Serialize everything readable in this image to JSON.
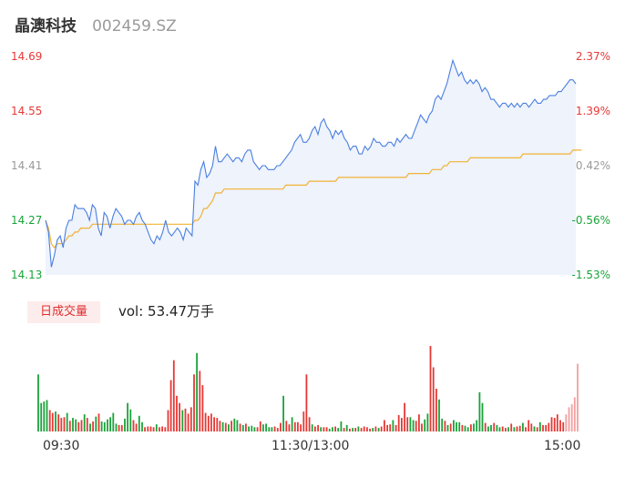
{
  "header": {
    "name": "晶澳科技",
    "code": "002459.SZ"
  },
  "colors": {
    "up": "#e53935",
    "down": "#1aa33a",
    "flat": "#999999",
    "price_line": "#4a7fe0",
    "avg_line": "#f2b234"
  },
  "chart_data": {
    "type": "line",
    "price_axis": {
      "ticks": [
        "14.69",
        "14.55",
        "14.41",
        "14.27",
        "14.13"
      ]
    },
    "pct_axis": {
      "ticks": [
        "2.37%",
        "1.39%",
        "0.42%",
        "-0.56%",
        "-1.53%"
      ]
    },
    "ylim": [
      14.13,
      14.69
    ],
    "x_ticks": [
      "09:30",
      "11:30/13:00",
      "15:00"
    ],
    "price": [
      14.27,
      14.24,
      14.15,
      14.18,
      14.22,
      14.23,
      14.2,
      14.25,
      14.27,
      14.27,
      14.31,
      14.3,
      14.3,
      14.3,
      14.29,
      14.27,
      14.31,
      14.3,
      14.25,
      14.23,
      14.29,
      14.28,
      14.25,
      14.28,
      14.3,
      14.29,
      14.28,
      14.26,
      14.27,
      14.27,
      14.26,
      14.28,
      14.29,
      14.27,
      14.26,
      14.24,
      14.22,
      14.21,
      14.23,
      14.22,
      14.24,
      14.27,
      14.24,
      14.23,
      14.24,
      14.25,
      14.24,
      14.22,
      14.25,
      14.24,
      14.23,
      14.37,
      14.36,
      14.4,
      14.42,
      14.38,
      14.39,
      14.41,
      14.46,
      14.42,
      14.42,
      14.43,
      14.44,
      14.43,
      14.42,
      14.43,
      14.43,
      14.42,
      14.44,
      14.45,
      14.45,
      14.42,
      14.41,
      14.4,
      14.41,
      14.41,
      14.4,
      14.4,
      14.4,
      14.41,
      14.41,
      14.42,
      14.43,
      14.44,
      14.45,
      14.47,
      14.48,
      14.49,
      14.47,
      14.47,
      14.48,
      14.5,
      14.51,
      14.49,
      14.52,
      14.53,
      14.51,
      14.5,
      14.48,
      14.5,
      14.49,
      14.5,
      14.48,
      14.47,
      14.45,
      14.46,
      14.46,
      14.44,
      14.44,
      14.46,
      14.45,
      14.46,
      14.48,
      14.47,
      14.47,
      14.46,
      14.46,
      14.47,
      14.47,
      14.46,
      14.48,
      14.47,
      14.48,
      14.49,
      14.48,
      14.48,
      14.5,
      14.52,
      14.54,
      14.53,
      14.52,
      14.54,
      14.55,
      14.58,
      14.59,
      14.58,
      14.6,
      14.62,
      14.65,
      14.68,
      14.66,
      14.64,
      14.65,
      14.63,
      14.62,
      14.63,
      14.62,
      14.63,
      14.62,
      14.6,
      14.61,
      14.6,
      14.58,
      14.58,
      14.57,
      14.56,
      14.57,
      14.57,
      14.56,
      14.57,
      14.56,
      14.57,
      14.56,
      14.57,
      14.57,
      14.56,
      14.57,
      14.58,
      14.57,
      14.57,
      14.58,
      14.58,
      14.59,
      14.59,
      14.59,
      14.6,
      14.6,
      14.61,
      14.62,
      14.63,
      14.63,
      14.62
    ],
    "avg": [
      14.27,
      14.25,
      14.21,
      14.2,
      14.21,
      14.21,
      14.21,
      14.22,
      14.23,
      14.23,
      14.24,
      14.24,
      14.25,
      14.25,
      14.25,
      14.25,
      14.26,
      14.26,
      14.26,
      14.26,
      14.26,
      14.26,
      14.26,
      14.26,
      14.26,
      14.26,
      14.26,
      14.26,
      14.26,
      14.26,
      14.26,
      14.26,
      14.26,
      14.26,
      14.26,
      14.26,
      14.26,
      14.26,
      14.26,
      14.26,
      14.26,
      14.26,
      14.26,
      14.26,
      14.26,
      14.26,
      14.26,
      14.26,
      14.26,
      14.26,
      14.26,
      14.27,
      14.27,
      14.28,
      14.3,
      14.3,
      14.31,
      14.32,
      14.34,
      14.34,
      14.34,
      14.35,
      14.35,
      14.35,
      14.35,
      14.35,
      14.35,
      14.35,
      14.35,
      14.35,
      14.35,
      14.35,
      14.35,
      14.35,
      14.35,
      14.35,
      14.35,
      14.35,
      14.35,
      14.35,
      14.35,
      14.35,
      14.36,
      14.36,
      14.36,
      14.36,
      14.36,
      14.36,
      14.36,
      14.36,
      14.37,
      14.37,
      14.37,
      14.37,
      14.37,
      14.37,
      14.37,
      14.37,
      14.37,
      14.37,
      14.38,
      14.38,
      14.38,
      14.38,
      14.38,
      14.38,
      14.38,
      14.38,
      14.38,
      14.38,
      14.38,
      14.38,
      14.38,
      14.38,
      14.38,
      14.38,
      14.38,
      14.38,
      14.38,
      14.38,
      14.38,
      14.38,
      14.38,
      14.38,
      14.39,
      14.39,
      14.39,
      14.39,
      14.39,
      14.39,
      14.39,
      14.39,
      14.4,
      14.4,
      14.4,
      14.4,
      14.41,
      14.41,
      14.42,
      14.42,
      14.42,
      14.42,
      14.42,
      14.42,
      14.42,
      14.43,
      14.43,
      14.43,
      14.43,
      14.43,
      14.43,
      14.43,
      14.43,
      14.43,
      14.43,
      14.43,
      14.43,
      14.43,
      14.43,
      14.43,
      14.43,
      14.43,
      14.43,
      14.44,
      14.44,
      14.44,
      14.44,
      14.44,
      14.44,
      14.44,
      14.44,
      14.44,
      14.44,
      14.44,
      14.44,
      14.44,
      14.44,
      14.44,
      14.44,
      14.44,
      14.45,
      14.45,
      14.45,
      14.45
    ],
    "volume": {
      "label": "日成交量",
      "total": "vol: 53.47万手",
      "values": [
        0.8,
        0.4,
        0.42,
        0.44,
        0.3,
        0.26,
        0.28,
        0.24,
        0.19,
        0.2,
        0.26,
        0.15,
        0.19,
        0.17,
        0.13,
        0.16,
        0.24,
        0.19,
        0.11,
        0.14,
        0.21,
        0.25,
        0.14,
        0.13,
        0.17,
        0.2,
        0.26,
        0.11,
        0.09,
        0.09,
        0.18,
        0.4,
        0.31,
        0.16,
        0.11,
        0.22,
        0.13,
        0.06,
        0.07,
        0.07,
        0.06,
        0.1,
        0.06,
        0.07,
        0.06,
        0.3,
        0.72,
        1.0,
        0.5,
        0.4,
        0.3,
        0.32,
        0.25,
        0.34,
        0.8,
        1.1,
        0.85,
        0.65,
        0.26,
        0.22,
        0.25,
        0.2,
        0.19,
        0.15,
        0.13,
        0.12,
        0.1,
        0.15,
        0.18,
        0.16,
        0.11,
        0.09,
        0.11,
        0.07,
        0.08,
        0.06,
        0.06,
        0.14,
        0.1,
        0.11,
        0.06,
        0.06,
        0.07,
        0.05,
        0.12,
        0.5,
        0.15,
        0.1,
        0.2,
        0.13,
        0.13,
        0.1,
        0.28,
        0.8,
        0.2,
        0.1,
        0.07,
        0.09,
        0.06,
        0.06,
        0.06,
        0.04,
        0.06,
        0.07,
        0.05,
        0.14,
        0.05,
        0.09,
        0.04,
        0.05,
        0.05,
        0.07,
        0.05,
        0.07,
        0.06,
        0.04,
        0.05,
        0.07,
        0.05,
        0.07,
        0.16,
        0.09,
        0.1,
        0.16,
        0.09,
        0.23,
        0.19,
        0.4,
        0.2,
        0.2,
        0.16,
        0.15,
        0.24,
        0.11,
        0.17,
        0.25,
        1.2,
        0.9,
        0.6,
        0.45,
        0.18,
        0.15,
        0.09,
        0.11,
        0.16,
        0.13,
        0.13,
        0.09,
        0.08,
        0.06,
        0.1,
        0.11,
        0.16,
        0.55,
        0.4,
        0.12,
        0.07,
        0.09,
        0.12,
        0.09,
        0.06,
        0.07,
        0.05,
        0.06,
        0.11,
        0.06,
        0.07,
        0.08,
        0.12,
        0.06,
        0.16,
        0.11,
        0.07,
        0.06,
        0.13,
        0.09,
        0.09,
        0.12,
        0.2,
        0.19,
        0.24,
        0.16,
        0.13,
        0.24,
        0.34,
        0.38,
        0.48,
        0.95
      ],
      "directions": [
        "d",
        "d",
        "d",
        "d",
        "u",
        "u",
        "d",
        "u",
        "u",
        "u",
        "d",
        "u",
        "d",
        "d",
        "u",
        "u",
        "d",
        "u",
        "d",
        "u",
        "d",
        "u",
        "d",
        "d",
        "d",
        "d",
        "d",
        "d",
        "u",
        "u",
        "d",
        "d",
        "d",
        "u",
        "u",
        "d",
        "d",
        "u",
        "u",
        "u",
        "u",
        "d",
        "u",
        "u",
        "u",
        "u",
        "u",
        "u",
        "u",
        "u",
        "d",
        "u",
        "u",
        "u",
        "u",
        "d",
        "u",
        "u",
        "u",
        "u",
        "u",
        "u",
        "u",
        "u",
        "d",
        "u",
        "d",
        "u",
        "d",
        "d",
        "u",
        "d",
        "u",
        "d",
        "d",
        "d",
        "u",
        "u",
        "d",
        "d",
        "d",
        "d",
        "u",
        "u",
        "u",
        "d",
        "u",
        "u",
        "d",
        "u",
        "u",
        "u",
        "u",
        "u",
        "u",
        "d",
        "u",
        "u",
        "d",
        "u",
        "u",
        "d",
        "d",
        "u",
        "d",
        "d",
        "u",
        "d",
        "u",
        "d",
        "u",
        "d",
        "u",
        "u",
        "u",
        "u",
        "d",
        "u",
        "d",
        "u",
        "u",
        "u",
        "u",
        "d",
        "u",
        "u",
        "u",
        "u",
        "u",
        "d",
        "d",
        "u",
        "u",
        "u",
        "d",
        "d",
        "u",
        "u",
        "u",
        "d",
        "d",
        "u",
        "d",
        "u",
        "d",
        "d",
        "d",
        "u",
        "d",
        "d",
        "u",
        "d",
        "d",
        "d",
        "d",
        "u",
        "d",
        "d",
        "u",
        "d",
        "d",
        "u",
        "u",
        "d",
        "u",
        "d",
        "u",
        "u",
        "d",
        "u",
        "u",
        "u",
        "d",
        "u",
        "d",
        "u",
        "u",
        "u",
        "u",
        "u",
        "u",
        "u",
        "u",
        "f"
      ]
    }
  }
}
